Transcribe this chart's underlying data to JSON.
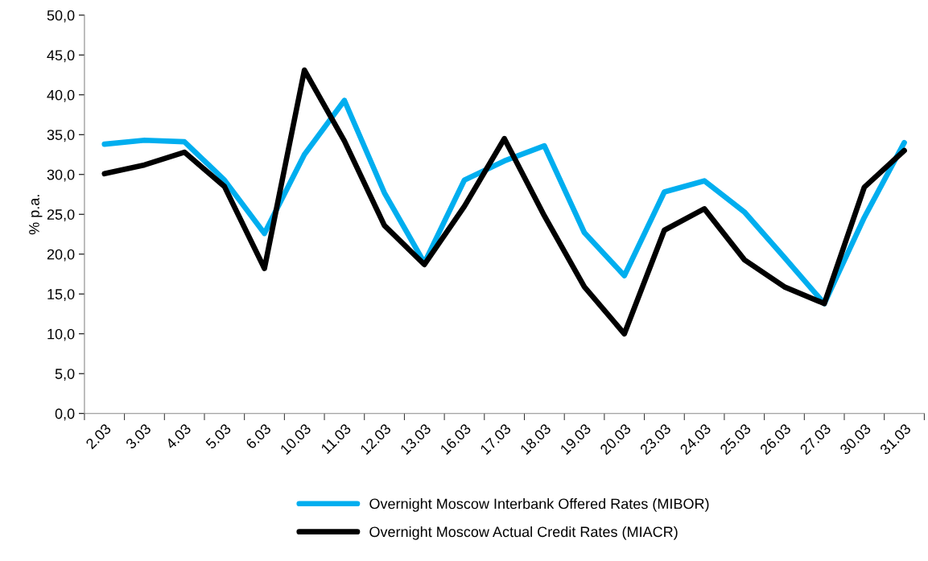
{
  "chart_data": {
    "type": "line",
    "ylabel": "% p.a.",
    "categories": [
      "2.03",
      "3.03",
      "4.03",
      "5.03",
      "6.03",
      "10.03",
      "11.03",
      "12.03",
      "13.03",
      "16.03",
      "17.03",
      "18.03",
      "19.03",
      "20.03",
      "23.03",
      "24.03",
      "25.03",
      "26.03",
      "27.03",
      "30.03",
      "31.03"
    ],
    "series": [
      {
        "name": "Overnight Moscow Interbank Offered Rates (MIBOR)",
        "color": "#00aeef",
        "values": [
          33.8,
          34.3,
          34.1,
          29.3,
          22.6,
          32.5,
          39.3,
          27.7,
          18.9,
          29.3,
          31.7,
          33.6,
          22.7,
          17.3,
          27.8,
          29.2,
          25.3,
          19.6,
          13.8,
          24.6,
          34.0
        ]
      },
      {
        "name": "Overnight Moscow Actual Credit Rates (MIACR)",
        "color": "#000000",
        "values": [
          30.1,
          31.2,
          32.8,
          28.5,
          18.2,
          43.1,
          34.2,
          23.6,
          18.7,
          26.0,
          34.5,
          24.8,
          15.9,
          10.0,
          23.0,
          25.7,
          19.3,
          15.9,
          13.8,
          28.4,
          33.0
        ]
      }
    ],
    "ylim": [
      0,
      50
    ],
    "yticks": [
      {
        "value": 0,
        "label": "0,0"
      },
      {
        "value": 5,
        "label": "5,0"
      },
      {
        "value": 10,
        "label": "10,0"
      },
      {
        "value": 15,
        "label": "15,0"
      },
      {
        "value": 20,
        "label": "20,0"
      },
      {
        "value": 25,
        "label": "25,0"
      },
      {
        "value": 30,
        "label": "30,0"
      },
      {
        "value": 35,
        "label": "35,0"
      },
      {
        "value": 40,
        "label": "40,0"
      },
      {
        "value": 45,
        "label": "45,0"
      },
      {
        "value": 50,
        "label": "50,0"
      }
    ],
    "grid": false,
    "legend": "bottom",
    "marker": "none",
    "line_style": "solid"
  }
}
